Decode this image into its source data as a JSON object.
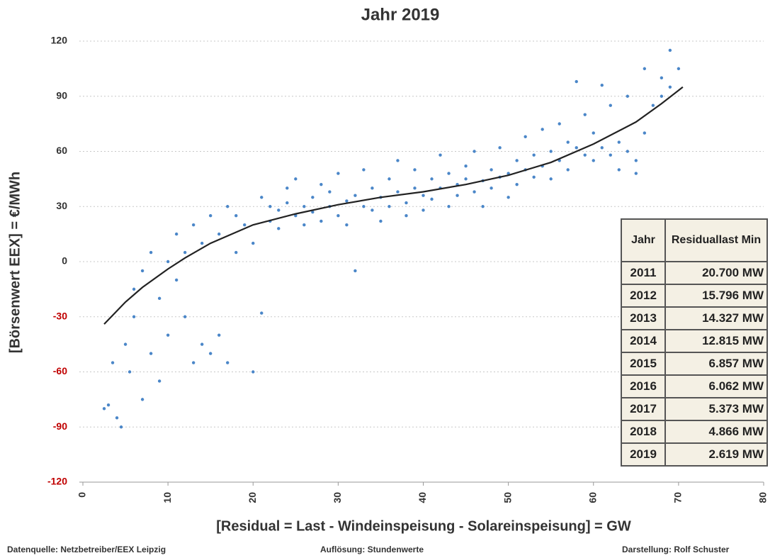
{
  "chart_data": {
    "type": "scatter",
    "title": "Jahr 2019",
    "x_label": "[Residual  =  Last - Windeinspeisung - Solareinspeisung] = GW",
    "y_label": "[Börsenwert EEX]  =  €/MWh",
    "xlim": [
      0,
      80
    ],
    "xticks": [
      0,
      10,
      20,
      30,
      40,
      50,
      60,
      70,
      80
    ],
    "ylim": [
      -120,
      120
    ],
    "yticks": [
      -120,
      -90,
      -60,
      -30,
      0,
      30,
      60,
      90,
      120
    ],
    "negative_tick_color": "#c00000",
    "grid": true,
    "series": [
      {
        "type": "scatter",
        "color": "#4a86c8",
        "x": [
          2.5,
          3,
          3.5,
          4,
          4.5,
          5,
          5.5,
          6,
          6,
          7,
          7,
          8,
          8,
          9,
          9,
          10,
          10,
          11,
          11,
          12,
          12,
          13,
          13,
          14,
          14,
          15,
          15,
          16,
          16,
          17,
          17,
          18,
          18,
          19,
          20,
          20,
          21,
          21,
          22,
          22,
          23,
          23,
          24,
          24,
          25,
          25,
          26,
          26,
          27,
          27,
          28,
          28,
          29,
          29,
          30,
          30,
          31,
          31,
          32,
          32,
          33,
          33,
          34,
          34,
          35,
          35,
          36,
          36,
          37,
          37,
          38,
          38,
          39,
          39,
          40,
          40,
          41,
          41,
          42,
          42,
          43,
          43,
          44,
          44,
          45,
          45,
          46,
          46,
          47,
          47,
          48,
          48,
          49,
          49,
          50,
          50,
          51,
          51,
          52,
          52,
          53,
          53,
          54,
          54,
          55,
          55,
          56,
          56,
          57,
          57,
          58,
          58,
          59,
          59,
          60,
          60,
          61,
          61,
          62,
          62,
          63,
          63,
          64,
          64,
          65,
          65,
          66,
          66,
          67,
          68,
          68,
          69,
          69,
          70
        ],
        "values": [
          -80,
          -78,
          -55,
          -85,
          -90,
          -45,
          -60,
          -30,
          -15,
          -75,
          -5,
          -50,
          5,
          -65,
          -20,
          -40,
          0,
          -10,
          15,
          -30,
          5,
          -55,
          20,
          -45,
          10,
          -50,
          25,
          -40,
          15,
          -55,
          30,
          5,
          25,
          20,
          -60,
          10,
          -28,
          35,
          22,
          30,
          28,
          18,
          32,
          40,
          25,
          45,
          30,
          20,
          35,
          27,
          22,
          42,
          30,
          38,
          25,
          48,
          33,
          20,
          36,
          -5,
          30,
          50,
          28,
          40,
          35,
          22,
          45,
          30,
          38,
          55,
          32,
          25,
          40,
          50,
          36,
          28,
          45,
          34,
          40,
          58,
          30,
          48,
          42,
          36,
          45,
          52,
          38,
          60,
          44,
          30,
          50,
          40,
          46,
          62,
          48,
          35,
          55,
          42,
          50,
          68,
          46,
          58,
          52,
          72,
          60,
          45,
          55,
          75,
          50,
          65,
          62,
          98,
          58,
          80,
          55,
          70,
          62,
          96,
          58,
          85,
          65,
          50,
          90,
          60,
          55,
          48,
          105,
          70,
          85,
          100,
          90,
          115,
          95,
          105
        ]
      },
      {
        "type": "line",
        "color": "#222222",
        "x": [
          2.5,
          5,
          7,
          10,
          12,
          15,
          20,
          25,
          30,
          35,
          40,
          45,
          50,
          55,
          60,
          65,
          68,
          70.5
        ],
        "values": [
          -34,
          -22,
          -14,
          -4,
          2,
          10,
          20,
          26,
          31,
          35,
          38,
          42,
          47,
          54,
          64,
          76,
          86,
          95
        ]
      }
    ],
    "table": {
      "header": [
        "Jahr",
        "Residuallast Min"
      ],
      "rows": [
        [
          "2011",
          "20.700 MW"
        ],
        [
          "2012",
          "15.796 MW"
        ],
        [
          "2013",
          "14.327 MW"
        ],
        [
          "2014",
          "12.815 MW"
        ],
        [
          "2015",
          "6.857 MW"
        ],
        [
          "2016",
          "6.062 MW"
        ],
        [
          "2017",
          "5.373 MW"
        ],
        [
          "2018",
          "4.866 MW"
        ],
        [
          "2019",
          "2.619 MW"
        ]
      ]
    },
    "footnotes": [
      "Datenquelle: Netzbetreiber/EEX Leipzig",
      "Auflösung: Stundenwerte",
      "Darstellung: Rolf Schuster"
    ]
  }
}
